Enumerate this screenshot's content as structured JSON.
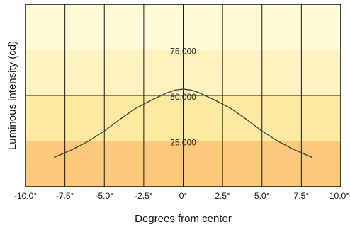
{
  "chart_data": {
    "type": "line",
    "xlabel": "Degrees from center",
    "ylabel": "Luminous intensity (cd)",
    "xlim": [
      -10,
      10
    ],
    "ylim": [
      0,
      100000
    ],
    "x_ticks": [
      -10,
      -7.5,
      -5,
      -2.5,
      0,
      2.5,
      5,
      7.5,
      10
    ],
    "x_tick_labels": [
      "-10.0°",
      "-7.5°",
      "-5.0°",
      "-2.5°",
      "0°",
      "2.5°",
      "5.0°",
      "7.5°",
      "10.0°"
    ],
    "y_ticks": [
      25000,
      50000,
      75000
    ],
    "y_tick_labels": [
      "25,000",
      "50,000",
      "75,000"
    ],
    "grid": true,
    "bands": [
      {
        "from": 0,
        "to": 25000,
        "color": "#fcc97a"
      },
      {
        "from": 25000,
        "to": 50000,
        "color": "#fde9a0"
      },
      {
        "from": 50000,
        "to": 75000,
        "color": "#fef3bf"
      },
      {
        "from": 75000,
        "to": 100000,
        "color": "#fffad8"
      }
    ],
    "series": [
      {
        "color": "#444444",
        "x": [
          -8.2,
          -7,
          -6,
          -5,
          -4,
          -3,
          -2,
          -1,
          -0.5,
          0,
          0.5,
          1,
          2,
          3,
          4,
          5,
          6,
          7,
          8.2
        ],
        "y": [
          16000,
          20500,
          25000,
          30500,
          37000,
          43000,
          47500,
          51500,
          53000,
          53500,
          53000,
          51500,
          47500,
          43000,
          37000,
          30500,
          25000,
          20500,
          16000
        ]
      }
    ]
  }
}
